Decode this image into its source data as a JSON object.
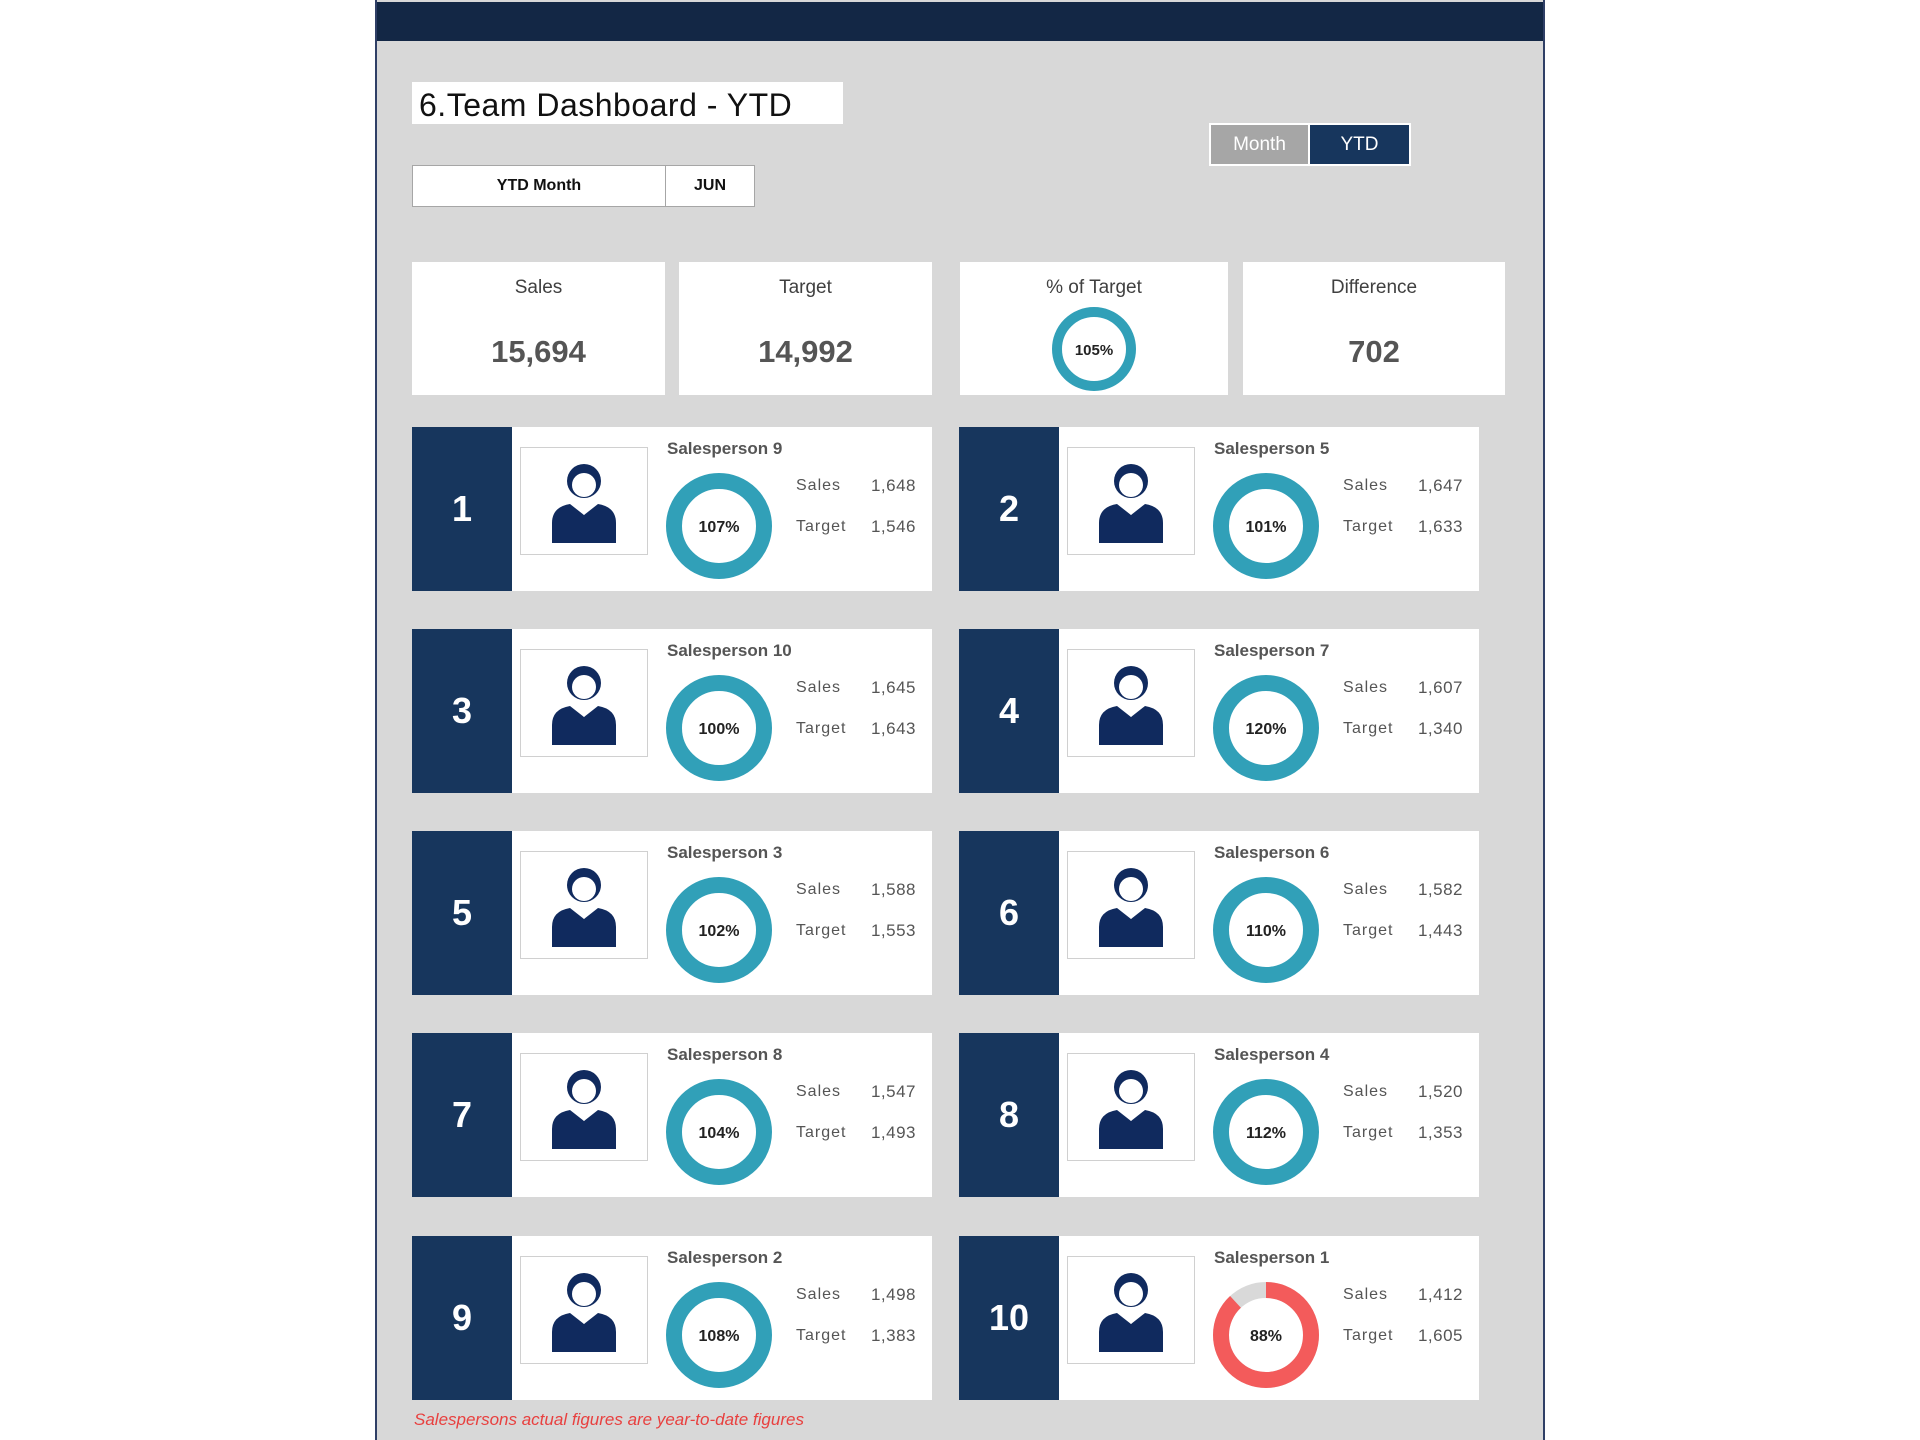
{
  "title": "6.Team Dashboard - YTD",
  "ytd_selector": {
    "label": "YTD Month",
    "value": "JUN"
  },
  "toggle": {
    "month_label": "Month",
    "ytd_label": "YTD"
  },
  "kpis": {
    "sales": {
      "label": "Sales",
      "value": "15,694"
    },
    "target": {
      "label": "Target",
      "value": "14,992"
    },
    "pct": {
      "label": "% of Target",
      "value": "105%"
    },
    "difference": {
      "label": "Difference",
      "value": "702"
    }
  },
  "colors": {
    "on_target": "#31a0b8",
    "below_target": "#f35b5b",
    "rank_bg": "#17365d",
    "icon": "#102a5e"
  },
  "row_labels": {
    "sales": "Sales",
    "target": "Target"
  },
  "salespeople": [
    {
      "rank": "1",
      "name": "Salesperson 9",
      "pct": "107%",
      "ratio": 1.07,
      "sales": "1,648",
      "target": "1,546",
      "icon": "person-tie-icon"
    },
    {
      "rank": "2",
      "name": "Salesperson 5",
      "pct": "101%",
      "ratio": 1.01,
      "sales": "1,647",
      "target": "1,633",
      "icon": "person-bald-glasses-icon"
    },
    {
      "rank": "3",
      "name": "Salesperson 10",
      "pct": "100%",
      "ratio": 1.0,
      "sales": "1,645",
      "target": "1,643",
      "icon": "person-shirt-icon"
    },
    {
      "rank": "4",
      "name": "Salesperson 7",
      "pct": "120%",
      "ratio": 1.2,
      "sales": "1,607",
      "target": "1,340",
      "icon": "person-beard-sunglasses-icon"
    },
    {
      "rank": "5",
      "name": "Salesperson 3",
      "pct": "102%",
      "ratio": 1.02,
      "sales": "1,588",
      "target": "1,553",
      "icon": "person-glasses-suit-icon"
    },
    {
      "rank": "6",
      "name": "Salesperson 6",
      "pct": "110%",
      "ratio": 1.1,
      "sales": "1,582",
      "target": "1,443",
      "icon": "person-desk-icon"
    },
    {
      "rank": "7",
      "name": "Salesperson 8",
      "pct": "104%",
      "ratio": 1.04,
      "sales": "1,547",
      "target": "1,493",
      "icon": "person-bun-icon"
    },
    {
      "rank": "8",
      "name": "Salesperson 4",
      "pct": "112%",
      "ratio": 1.12,
      "sales": "1,520",
      "target": "1,353",
      "icon": "person-suit-icon"
    },
    {
      "rank": "9",
      "name": "Salesperson 2",
      "pct": "108%",
      "ratio": 1.08,
      "sales": "1,498",
      "target": "1,383",
      "icon": "person-curly-icon"
    },
    {
      "rank": "10",
      "name": "Salesperson 1",
      "pct": "88%",
      "ratio": 0.88,
      "sales": "1,412",
      "target": "1,605",
      "icon": "person-glasses-tie-icon"
    }
  ],
  "footnote": "Salespersons actual figures are year-to-date figures"
}
